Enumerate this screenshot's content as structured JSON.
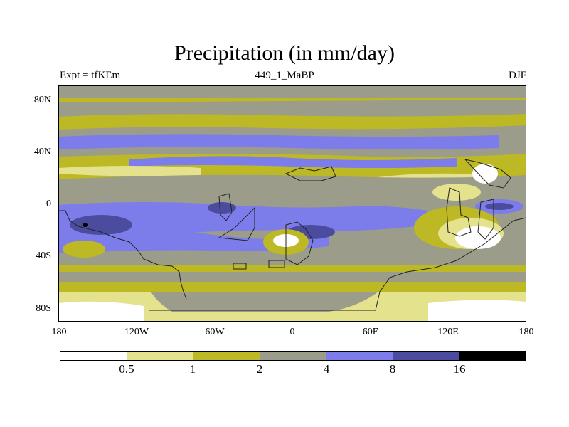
{
  "title": "Precipitation (in mm/day)",
  "subtitle_left": "Expt = tfKEm",
  "subtitle_center": "449_1_MaBP",
  "subtitle_right": "DJF",
  "y_labels": [
    "80N",
    "40N",
    "0",
    "40S",
    "80S"
  ],
  "x_labels": [
    "180",
    "120W",
    "60W",
    "0",
    "60E",
    "120E",
    "180"
  ],
  "colorbar": {
    "colors": [
      "#ffffff",
      "#e5e28e",
      "#bcb924",
      "#9c9c8a",
      "#7c7cea",
      "#4c4c9e",
      "#000000"
    ],
    "labels": [
      "0.5",
      "1",
      "2",
      "4",
      "8",
      "16"
    ]
  },
  "colors": {
    "white": "#ffffff",
    "light_yellow": "#e5e28e",
    "olive": "#bcb924",
    "gray": "#9c9c8a",
    "blue": "#7c7cea",
    "dark_blue": "#4c4c9e",
    "black": "#000000"
  }
}
